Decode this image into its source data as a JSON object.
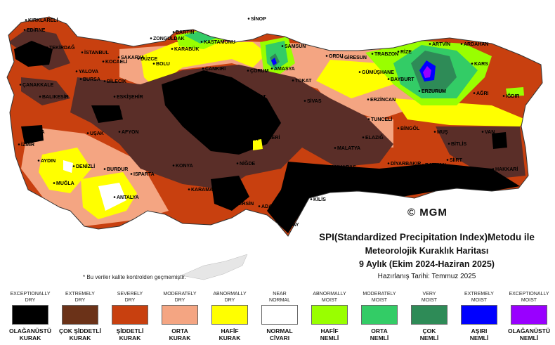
{
  "title": {
    "line1": "SPI(Standardized Precipitation Index)Metodu ile",
    "line2": "Meteorolojik Kuraklık Haritası",
    "line3": "9 Aylık (Ekim 2024-Haziran 2025)",
    "line4": "Hazırlanış Tarihi: Temmuz 2025"
  },
  "note": "* Bu veriler kalite kontrolden geçmemiştir.",
  "watermark": "© MGM",
  "colors": {
    "exceptionally_dry": "#000000",
    "extremely_dry": "#6b3218",
    "severely_dry": "#c8400f",
    "moderately_dry": "#f4a582",
    "abnormally_dry": "#ffff00",
    "near_normal": "#ffffff",
    "abnormally_moist": "#99ff00",
    "moderately_moist": "#33cc66",
    "very_moist": "#2e8b57",
    "extremely_moist": "#0000ff",
    "exceptionally_moist": "#9900ff",
    "dark_brown_overlay": "#5a2e28"
  },
  "legend": [
    {
      "en1": "EXCEPTIONALLY",
      "en2": "DRY",
      "tr1": "OLAĞANÜSTÜ",
      "tr2": "KURAK",
      "color": "#000000"
    },
    {
      "en1": "EXTREMELY",
      "en2": "DRY",
      "tr1": "ÇOK ŞİDDETLİ",
      "tr2": "KURAK",
      "color": "#6b3218"
    },
    {
      "en1": "SEVERELY",
      "en2": "DRY",
      "tr1": "ŞİDDETLİ",
      "tr2": "KURAK",
      "color": "#c8400f"
    },
    {
      "en1": "MODERATELY",
      "en2": "DRY",
      "tr1": "ORTA",
      "tr2": "KURAK",
      "color": "#f4a582"
    },
    {
      "en1": "ABNORMALLY",
      "en2": "DRY",
      "tr1": "HAFİF",
      "tr2": "KURAK",
      "color": "#ffff00"
    },
    {
      "en1": "NEAR",
      "en2": "NORMAL",
      "tr1": "NORMAL",
      "tr2": "CİVARI",
      "color": "#ffffff"
    },
    {
      "en1": "ABNORMALLY",
      "en2": "MOIST",
      "tr1": "HAFİF",
      "tr2": "NEMLİ",
      "color": "#99ff00"
    },
    {
      "en1": "MODERATELY",
      "en2": "MOIST",
      "tr1": "ORTA",
      "tr2": "NEMLİ",
      "color": "#33cc66"
    },
    {
      "en1": "VERY",
      "en2": "MOIST",
      "tr1": "ÇOK",
      "tr2": "NEMLİ",
      "color": "#2e8b57"
    },
    {
      "en1": "EXTREMELY",
      "en2": "MOIST",
      "tr1": "AŞIRI",
      "tr2": "NEMLİ",
      "color": "#0000ff"
    },
    {
      "en1": "EXCEPTIONALLY",
      "en2": "MOIST",
      "tr1": "OLAĞANÜSTÜ",
      "tr2": "NEMLİ",
      "color": "#9900ff"
    }
  ],
  "cities": [
    "KIRKLARELİ",
    "EDİRNE",
    "TEKİRDAĞ",
    "İSTANBUL",
    "KOCAELİ",
    "SAKARYA",
    "DÜZCE",
    "BOLU",
    "ZONGULDAK",
    "BARTIN",
    "KARABÜK",
    "KASTAMONU",
    "SİNOP",
    "SAMSUN",
    "ORDU",
    "GİRESUN",
    "TRABZON",
    "RİZE",
    "ARTVİN",
    "ARDAHAN",
    "KARS",
    "IĞDIR",
    "AĞRI",
    "ERZURUM",
    "BAYBURT",
    "GÜMÜŞHANE",
    "ERZİNCAN",
    "AMASYA",
    "TOKAT",
    "ÇORUM",
    "ÇANKIRI",
    "KIRIKKALE",
    "YOZGAT",
    "SİVAS",
    "KAYSERİ",
    "NEVŞEHİR",
    "AKSARAY",
    "NİĞDE",
    "KIRŞEHİR",
    "ANKARA",
    "ESKİŞEHİR",
    "BİLECİK",
    "BURSA",
    "YALOVA",
    "BALIKESİR",
    "ÇANAKKALE",
    "MANİSA",
    "İZMİR",
    "AYDIN",
    "MUĞLA",
    "DENİZLİ",
    "UŞAK",
    "KÜTAHYA",
    "AFYON",
    "BURDUR",
    "ISPARTA",
    "ANTALYA",
    "KONYA",
    "KARAMAN",
    "MERSİN",
    "ADANA",
    "OSMANİYE",
    "HATAY",
    "GAZİANTEP",
    "KİLİS",
    "ŞANLIURFA",
    "MARDİN",
    "DİYARBAKIR",
    "BATMAN",
    "SİİRT",
    "ŞIRNAK",
    "HAKKARİ",
    "VAN",
    "BİTLİS",
    "MUŞ",
    "BİNGÖL",
    "TUNCELİ",
    "ELAZIĞ",
    "MALATYA",
    "ADIYAMAN",
    "KAHRAMANMARAŞ"
  ]
}
